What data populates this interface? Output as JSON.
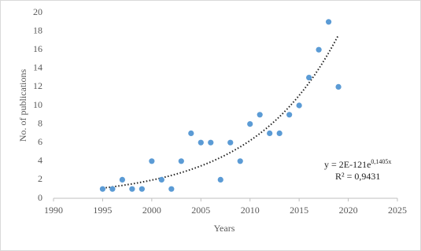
{
  "chart_data": {
    "type": "scatter",
    "x_label": "Years",
    "y_label": "No. of publications",
    "x": [
      1995,
      1996,
      1997,
      1998,
      1999,
      2000,
      2001,
      2002,
      2003,
      2004,
      2005,
      2006,
      2007,
      2008,
      2009,
      2010,
      2011,
      2012,
      2013,
      2014,
      2015,
      2016,
      2017,
      2018,
      2019
    ],
    "series": [
      {
        "color": "#5b9bd5",
        "values": [
          1,
          1,
          2,
          1,
          1,
          4,
          2,
          1,
          4,
          7,
          6,
          6,
          2,
          6,
          4,
          8,
          9,
          7,
          7,
          9,
          10,
          13,
          16,
          19,
          12
        ]
      }
    ],
    "trendline": {
      "type": "exponential",
      "equation_label": "y = 2E-121e",
      "exponent_label": "0,1405x",
      "r2_label": "R² = 0,9431"
    },
    "xlim": [
      1990,
      2025
    ],
    "xticks": [
      1990,
      1995,
      2000,
      2005,
      2010,
      2015,
      2020,
      2025
    ],
    "ylim": [
      0,
      20
    ],
    "yticks": [
      0,
      2,
      4,
      6,
      8,
      10,
      12,
      14,
      16,
      18,
      20
    ],
    "grid": false
  }
}
